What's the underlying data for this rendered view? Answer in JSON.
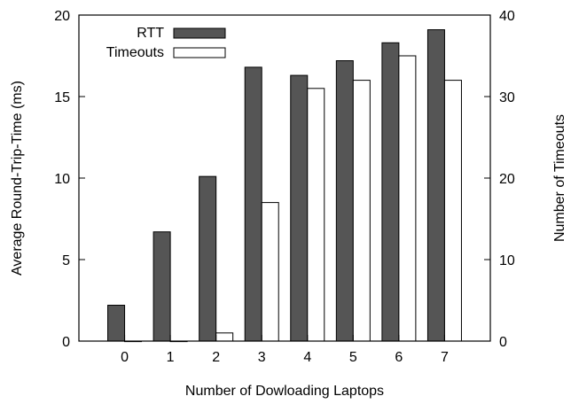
{
  "chart_data": {
    "type": "bar",
    "categories": [
      "0",
      "1",
      "2",
      "3",
      "4",
      "5",
      "6",
      "7"
    ],
    "xlabel": "Number of Dowloading Laptops",
    "ylabel": "Average Round-Trip-Time (ms)",
    "y2label": "Number of Timeouts",
    "ylim": [
      0,
      20
    ],
    "y2lim": [
      0,
      40
    ],
    "yticks": [
      0,
      5,
      10,
      15,
      20
    ],
    "y2ticks": [
      0,
      10,
      20,
      30,
      40
    ],
    "grid": false,
    "legend_placement": "top-left",
    "series": [
      {
        "name": "RTT",
        "axis": "left",
        "color": "#555555",
        "values": [
          2.2,
          6.7,
          10.1,
          16.8,
          16.3,
          17.2,
          18.3,
          19.1
        ]
      },
      {
        "name": "Timeouts",
        "axis": "right",
        "color": "#ffffff",
        "values": [
          0,
          0,
          1,
          17,
          31,
          32,
          35,
          32
        ]
      }
    ]
  }
}
